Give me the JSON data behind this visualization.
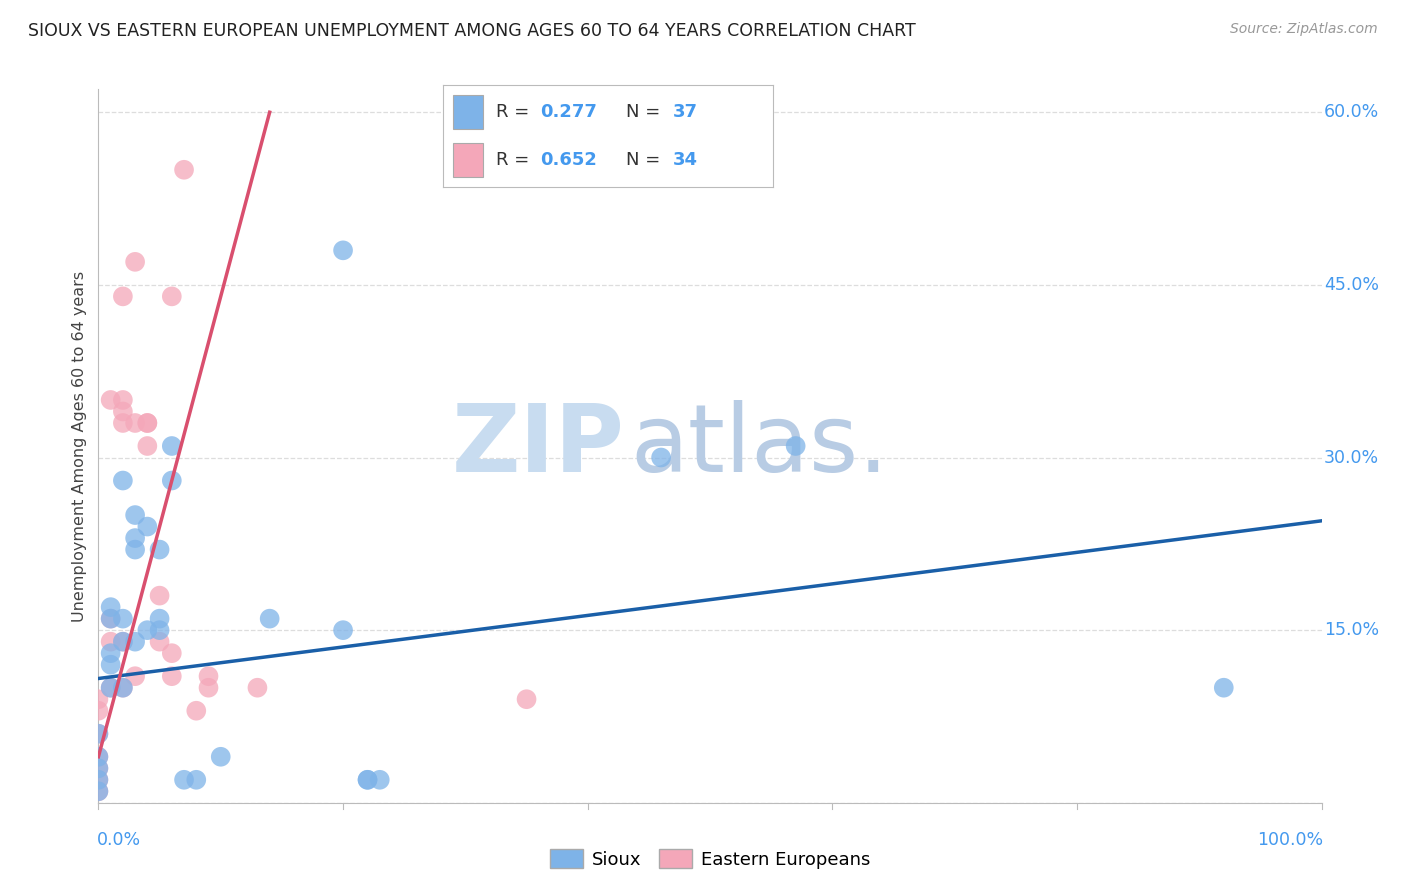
{
  "title": "SIOUX VS EASTERN EUROPEAN UNEMPLOYMENT AMONG AGES 60 TO 64 YEARS CORRELATION CHART",
  "source": "Source: ZipAtlas.com",
  "ylabel": "Unemployment Among Ages 60 to 64 years",
  "legend_sioux_R": "0.277",
  "legend_sioux_N": "37",
  "legend_ee_R": "0.652",
  "legend_ee_N": "34",
  "sioux_color": "#7EB3E8",
  "sioux_line_color": "#1A5FA8",
  "ee_color": "#F4A7B9",
  "ee_line_color": "#D94F6E",
  "watermark_zip": "ZIP",
  "watermark_atlas": "atlas.",
  "background_color": "#ffffff",
  "grid_color": "#dddddd",
  "sioux_x": [
    0.0,
    0.0,
    0.0,
    0.0,
    0.0,
    0.01,
    0.01,
    0.01,
    0.01,
    0.01,
    0.02,
    0.02,
    0.02,
    0.02,
    0.03,
    0.03,
    0.03,
    0.03,
    0.04,
    0.04,
    0.05,
    0.05,
    0.05,
    0.06,
    0.06,
    0.07,
    0.08,
    0.1,
    0.14,
    0.2,
    0.22,
    0.22,
    0.23,
    0.46,
    0.57,
    0.92,
    0.2
  ],
  "sioux_y": [
    0.01,
    0.02,
    0.03,
    0.04,
    0.06,
    0.1,
    0.12,
    0.13,
    0.16,
    0.17,
    0.1,
    0.14,
    0.16,
    0.28,
    0.14,
    0.22,
    0.23,
    0.25,
    0.15,
    0.24,
    0.15,
    0.16,
    0.22,
    0.28,
    0.31,
    0.02,
    0.02,
    0.04,
    0.16,
    0.15,
    0.02,
    0.02,
    0.02,
    0.3,
    0.31,
    0.1,
    0.48
  ],
  "ee_x": [
    0.0,
    0.0,
    0.0,
    0.0,
    0.0,
    0.0,
    0.0,
    0.01,
    0.01,
    0.01,
    0.02,
    0.02,
    0.02,
    0.02,
    0.02,
    0.03,
    0.03,
    0.03,
    0.04,
    0.04,
    0.05,
    0.05,
    0.06,
    0.06,
    0.07,
    0.08,
    0.09,
    0.09,
    0.13,
    0.35,
    0.01,
    0.02,
    0.04,
    0.06
  ],
  "ee_y": [
    0.01,
    0.02,
    0.03,
    0.04,
    0.06,
    0.08,
    0.09,
    0.1,
    0.14,
    0.16,
    0.1,
    0.14,
    0.33,
    0.35,
    0.44,
    0.11,
    0.33,
    0.47,
    0.31,
    0.33,
    0.14,
    0.18,
    0.11,
    0.44,
    0.55,
    0.08,
    0.1,
    0.11,
    0.1,
    0.09,
    0.35,
    0.34,
    0.33,
    0.13
  ],
  "sioux_line_x": [
    0.0,
    1.0
  ],
  "sioux_line_y": [
    0.108,
    0.245
  ],
  "ee_line_x": [
    0.0,
    0.14
  ],
  "ee_line_y": [
    0.04,
    0.6
  ],
  "xlim": [
    0.0,
    1.0
  ],
  "ylim": [
    0.0,
    0.62
  ],
  "ytick_positions": [
    0.0,
    0.15,
    0.3,
    0.45,
    0.6
  ],
  "ytick_labels": [
    "",
    "15.0%",
    "30.0%",
    "45.0%",
    "60.0%"
  ]
}
